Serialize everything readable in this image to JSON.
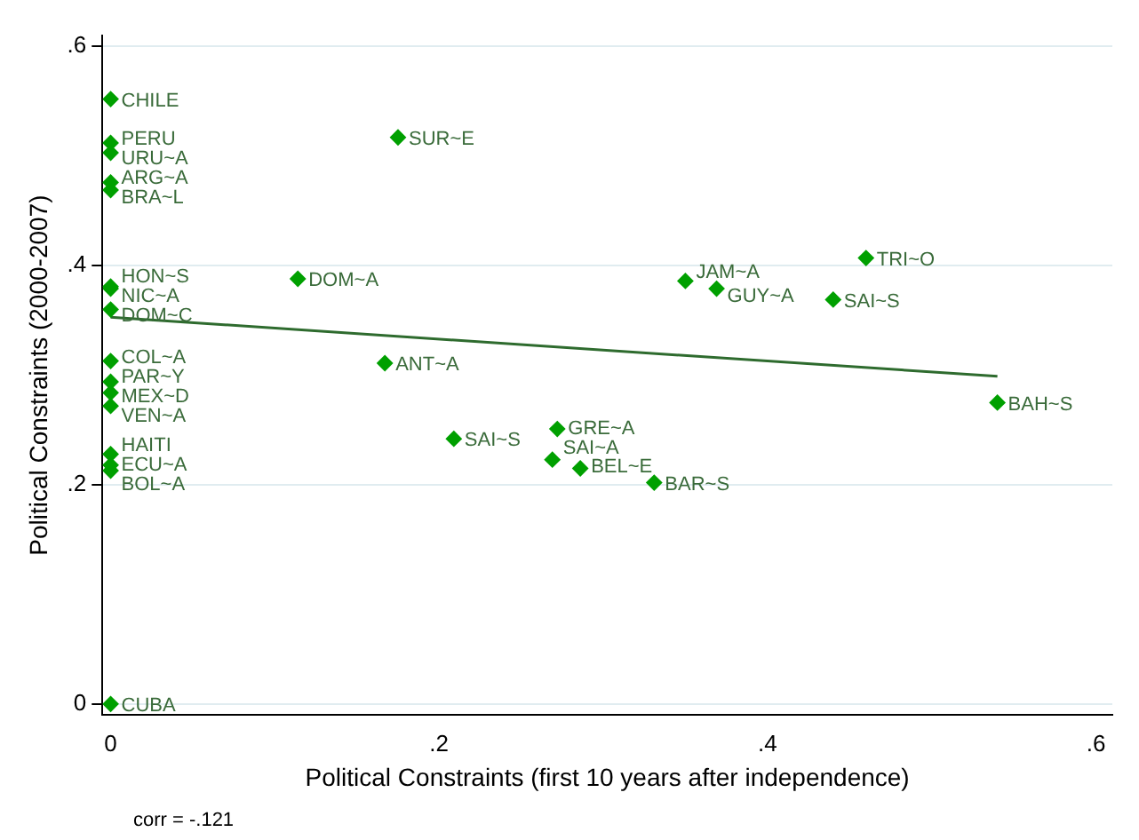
{
  "chart_data": {
    "type": "scatter",
    "xlabel": "Political Constraints (first 10 years after independence)",
    "ylabel": "Political Constraints (2000-2007)",
    "xlim": [
      -0.005,
      0.61
    ],
    "ylim": [
      -0.01,
      0.61
    ],
    "xticks": [
      0,
      {
        "value": 0.2,
        "label": ".2"
      },
      {
        "value": 0.4,
        "label": ".4"
      },
      {
        "value": 0.6,
        "label": ".6"
      }
    ],
    "yticks": [
      0,
      {
        "value": 0.2,
        "label": ".2"
      },
      {
        "value": 0.4,
        "label": ".4"
      },
      {
        "value": 0.6,
        "label": ".6"
      }
    ],
    "grid": "y",
    "marker": "diamond",
    "legend": false,
    "series": [
      {
        "type": "scatter",
        "color": "#00a000",
        "x": [
          0,
          0,
          0,
          0,
          0,
          0,
          0,
          0,
          0,
          0,
          0,
          0,
          0,
          0,
          0,
          0,
          0.175,
          0.114,
          0.167,
          0.209,
          0.272,
          0.269,
          0.286,
          0.331,
          0.35,
          0.369,
          0.44,
          0.46,
          0.54
        ],
        "values": [
          0.552,
          0.512,
          0.503,
          0.476,
          0.469,
          0.381,
          0.379,
          0.36,
          0.313,
          0.294,
          0.284,
          0.272,
          0.228,
          0.218,
          0.213,
          0,
          0.517,
          0.388,
          0.311,
          0.242,
          0.251,
          0.223,
          0.215,
          0.202,
          0.386,
          0.379,
          0.369,
          0.407,
          0.275
        ],
        "value_labels": [
          "CHILE",
          "PERU",
          "URU~A",
          "ARG~A",
          "BRA~L",
          "HON~S",
          "NIC~A",
          "DOM~C",
          "COL~A",
          "PAR~Y",
          "MEX~D",
          "VEN~A",
          "HAITI",
          "ECU~A",
          "BOL~A",
          "CUBA",
          "SUR~E",
          "DOM~A",
          "ANT~A",
          "SAI~S",
          "GRE~A",
          "SAI~A",
          "BEL~E",
          "BAR~S",
          "JAM~A",
          "GUY~A",
          "SAI~S",
          "TRI~O",
          "BAH~S"
        ]
      },
      {
        "type": "line",
        "color": "#2e6b2e",
        "x": [
          0,
          0.54
        ],
        "values": [
          0.353,
          0.299
        ],
        "marker": "none"
      }
    ],
    "annotations": [
      "corr = -.121"
    ]
  }
}
